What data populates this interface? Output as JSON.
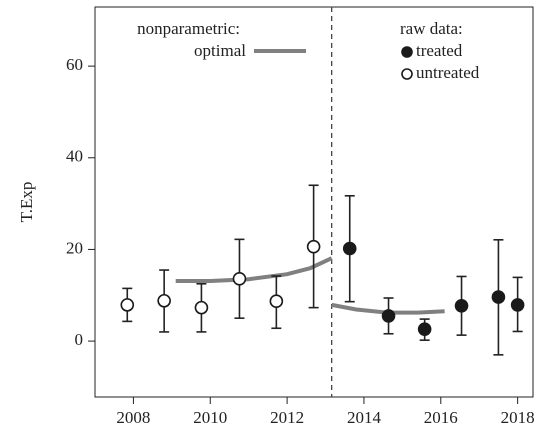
{
  "chart_data": {
    "type": "scatter",
    "y_label": "T.Exp",
    "xlim": [
      2007,
      2018.4
    ],
    "ylim": [
      -12.2,
      72.9
    ],
    "xticks": [
      2008,
      2010,
      2012,
      2014,
      2016,
      2018
    ],
    "yticks": [
      0,
      20,
      40,
      60
    ],
    "vline": 2013.16,
    "legend_titles": [
      "nonparametric:",
      "raw data:"
    ],
    "series": [
      {
        "name": "treated",
        "color": "#1a1a1a",
        "marker": "filled",
        "x": [
          2013.63,
          2014.64,
          2015.58,
          2016.54,
          2017.5,
          2018.0
        ],
        "values": [
          20.2,
          5.5,
          2.6,
          7.7,
          9.6,
          7.9
        ],
        "lower": [
          8.6,
          1.6,
          0.2,
          1.3,
          -3,
          2.1
        ],
        "upper": [
          31.7,
          9.4,
          4.8,
          14.1,
          22.1,
          13.9
        ]
      },
      {
        "name": "untreated",
        "color": "#1a1a1a",
        "marker": "open",
        "x": [
          2007.84,
          2008.8,
          2009.77,
          2010.76,
          2011.72,
          2012.69
        ],
        "values": [
          7.9,
          8.8,
          7.3,
          13.6,
          8.7,
          20.6
        ],
        "lower": [
          4.3,
          2,
          2,
          5,
          2.8,
          7.3
        ],
        "upper": [
          11.5,
          15.5,
          12.5,
          22.2,
          14.2,
          34
        ]
      }
    ],
    "curves": {
      "name": "optimal",
      "color": "#808080",
      "pieces": [
        {
          "x": [
            2009.1,
            2010,
            2011,
            2012,
            2012.6,
            2013.16
          ],
          "values": [
            13.1,
            13.1,
            13.5,
            14.6,
            15.9,
            18.1
          ]
        },
        {
          "x": [
            2013.16,
            2013.8,
            2014.6,
            2015.4,
            2016.1
          ],
          "values": [
            7.9,
            6.9,
            6.2,
            6.2,
            6.5
          ]
        }
      ]
    }
  }
}
